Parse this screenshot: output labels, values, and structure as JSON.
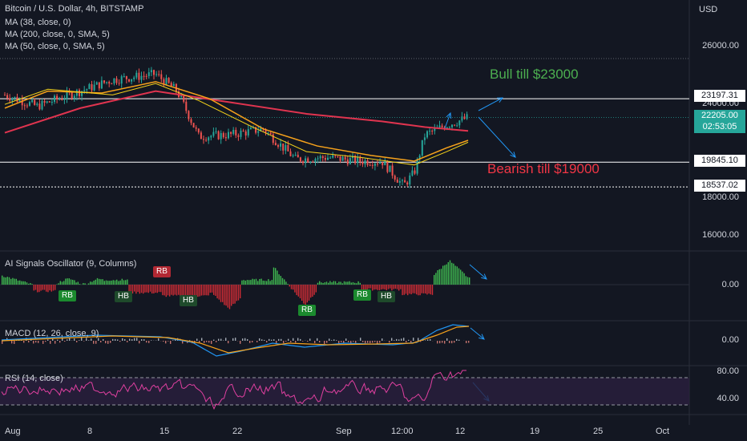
{
  "header": {
    "symbol_line": "Bitcoin / U.S. Dollar, 4h, BITSTAMP",
    "ma1": "MA (38, close, 0)",
    "ma2": "MA (200, close, 0, SMA, 5)",
    "ma3": "MA (50, close, 0, SMA, 5)",
    "currency": "USD"
  },
  "price_axis": {
    "ticks": [
      "26000.00",
      "24000.00",
      "18000.00",
      "16000.00"
    ],
    "tag_23197": "23197.31",
    "tag_current": "22205.00",
    "tag_timer": "02:53:05",
    "tag_19845": "19845.10",
    "tag_18537": "18537.02"
  },
  "annotations": {
    "bull": "Bull till $23000",
    "bear": "Bearish till $19000"
  },
  "oscillator": {
    "title": "AI Signals Oscillator (9, Columns)",
    "axis_zero": "0.00",
    "signals": [
      "RB",
      "HB",
      "RB",
      "HB",
      "RB",
      "RB",
      "HB"
    ]
  },
  "macd": {
    "title": "MACD (12, 26, close, 9)",
    "axis_zero": "0.00"
  },
  "rsi": {
    "title": "RSI (14, close)",
    "axis_80": "80.00",
    "axis_40": "40.00"
  },
  "time_axis": {
    "labels": [
      "Aug",
      "8",
      "15",
      "22",
      "Sep",
      "12:00",
      "12",
      "19",
      "25",
      "Oct"
    ]
  },
  "colors": {
    "background": "#131722",
    "bull_text": "#4caf50",
    "bear_text": "#f23645",
    "current_price_tag": "#26a69a",
    "ma_red": "#e0344f",
    "ma_orange": "#f7a21b",
    "ma_yellow": "#f5d21a",
    "arrow_blue": "#2196f3",
    "rsi_line": "#e040a0",
    "rsi_band": "#2a1f3f"
  },
  "chart_data": {
    "type": "candlestick",
    "title": "Bitcoin / U.S. Dollar, 4h, BITSTAMP",
    "ylabel": "USD",
    "ylim": [
      15000,
      27000
    ],
    "horizontal_levels": [
      23197.31,
      19845.1,
      18537.02
    ],
    "current_price": 22205.0,
    "close_path": [
      {
        "x": "Aug 1",
        "y": 23400
      },
      {
        "x": "Aug 4",
        "y": 22800
      },
      {
        "x": "Aug 8",
        "y": 23600
      },
      {
        "x": "Aug 11",
        "y": 24200
      },
      {
        "x": "Aug 15",
        "y": 24500
      },
      {
        "x": "Aug 17",
        "y": 23600
      },
      {
        "x": "Aug 19",
        "y": 21200
      },
      {
        "x": "Aug 22",
        "y": 21300
      },
      {
        "x": "Aug 25",
        "y": 21600
      },
      {
        "x": "Aug 28",
        "y": 20000
      },
      {
        "x": "Aug 31",
        "y": 20100
      },
      {
        "x": "Sep 3",
        "y": 19900
      },
      {
        "x": "Sep 5",
        "y": 19900
      },
      {
        "x": "Sep 7",
        "y": 18600
      },
      {
        "x": "Sep 8",
        "y": 19300
      },
      {
        "x": "Sep 9",
        "y": 21300
      },
      {
        "x": "Sep 11",
        "y": 21800
      },
      {
        "x": "Sep 13",
        "y": 22200
      }
    ]
  }
}
